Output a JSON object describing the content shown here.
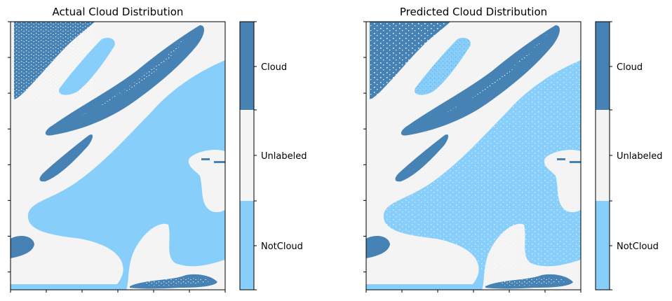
{
  "colors": {
    "cloud": "#4682b4",
    "unlabeled": "#f4f4f4",
    "notcloud": "#87cefa",
    "axis": "#000000"
  },
  "chart_data": [
    {
      "type": "heatmap",
      "title": "Actual Cloud Distribution",
      "classes": [
        "NotCloud",
        "Unlabeled",
        "Cloud"
      ],
      "colorbar_labels": [
        "Cloud",
        "Unlabeled",
        "NotCloud"
      ],
      "legend": "colorbar-right",
      "tick_labels_visible": false,
      "grid": false
    },
    {
      "type": "heatmap",
      "title": "Predicted Cloud Distribution",
      "classes": [
        "NotCloud",
        "Unlabeled",
        "Cloud"
      ],
      "colorbar_labels": [
        "Cloud",
        "Unlabeled",
        "NotCloud"
      ],
      "legend": "colorbar-right",
      "tick_labels_visible": false,
      "grid": false
    }
  ]
}
